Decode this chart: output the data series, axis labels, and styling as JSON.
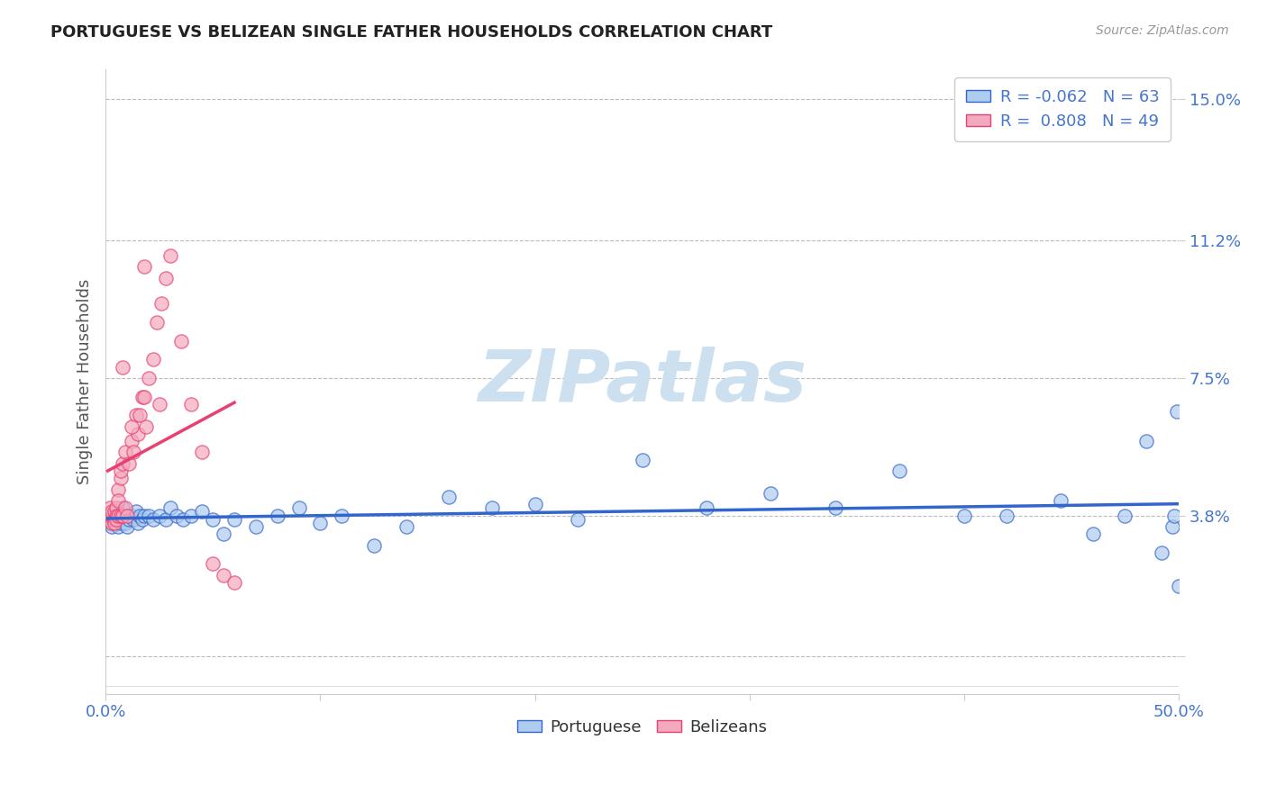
{
  "title": "PORTUGUESE VS BELIZEAN SINGLE FATHER HOUSEHOLDS CORRELATION CHART",
  "source_text": "Source: ZipAtlas.com",
  "ylabel": "Single Father Households",
  "xlim": [
    0.0,
    0.5
  ],
  "ylim": [
    -0.01,
    0.158
  ],
  "yticks": [
    0.0,
    0.038,
    0.075,
    0.112,
    0.15
  ],
  "ytick_labels": [
    "",
    "3.8%",
    "7.5%",
    "11.2%",
    "15.0%"
  ],
  "xtick_positions": [
    0.0,
    0.1,
    0.2,
    0.3,
    0.4,
    0.5
  ],
  "xtick_labels": [
    "0.0%",
    "",
    "",
    "",
    "",
    "50.0%"
  ],
  "portuguese_color": "#aeccee",
  "belizean_color": "#f4aabe",
  "portuguese_line_color": "#3366cc",
  "belizean_line_color": "#e84070",
  "legend_R1": "-0.062",
  "legend_N1": "63",
  "legend_R2": "0.808",
  "legend_N2": "49",
  "watermark": "ZIPatlas",
  "watermark_color": "#cce0f0",
  "background_color": "#ffffff",
  "grid_color": "#bbbbbb",
  "title_color": "#222222",
  "axis_label_color": "#555555",
  "tick_color": "#4477cc",
  "source_color": "#999999",
  "portuguese_x": [
    0.001,
    0.002,
    0.003,
    0.003,
    0.004,
    0.005,
    0.005,
    0.006,
    0.006,
    0.007,
    0.007,
    0.008,
    0.008,
    0.009,
    0.01,
    0.01,
    0.011,
    0.012,
    0.013,
    0.014,
    0.015,
    0.016,
    0.017,
    0.018,
    0.02,
    0.022,
    0.025,
    0.028,
    0.03,
    0.033,
    0.036,
    0.04,
    0.045,
    0.05,
    0.055,
    0.06,
    0.07,
    0.08,
    0.09,
    0.1,
    0.11,
    0.125,
    0.14,
    0.16,
    0.18,
    0.2,
    0.22,
    0.25,
    0.28,
    0.31,
    0.34,
    0.37,
    0.4,
    0.42,
    0.445,
    0.46,
    0.475,
    0.485,
    0.492,
    0.497,
    0.498,
    0.499,
    0.5
  ],
  "portuguese_y": [
    0.037,
    0.036,
    0.038,
    0.035,
    0.037,
    0.036,
    0.039,
    0.035,
    0.038,
    0.036,
    0.038,
    0.037,
    0.04,
    0.036,
    0.038,
    0.035,
    0.037,
    0.038,
    0.037,
    0.039,
    0.036,
    0.038,
    0.037,
    0.038,
    0.038,
    0.037,
    0.038,
    0.037,
    0.04,
    0.038,
    0.037,
    0.038,
    0.039,
    0.037,
    0.033,
    0.037,
    0.035,
    0.038,
    0.04,
    0.036,
    0.038,
    0.03,
    0.035,
    0.043,
    0.04,
    0.041,
    0.037,
    0.053,
    0.04,
    0.044,
    0.04,
    0.05,
    0.038,
    0.038,
    0.042,
    0.033,
    0.038,
    0.058,
    0.028,
    0.035,
    0.038,
    0.066,
    0.019
  ],
  "belizean_x": [
    0.001,
    0.001,
    0.002,
    0.002,
    0.003,
    0.003,
    0.003,
    0.004,
    0.004,
    0.004,
    0.005,
    0.005,
    0.005,
    0.006,
    0.006,
    0.006,
    0.007,
    0.007,
    0.007,
    0.008,
    0.008,
    0.009,
    0.009,
    0.01,
    0.011,
    0.012,
    0.013,
    0.014,
    0.015,
    0.016,
    0.017,
    0.018,
    0.019,
    0.02,
    0.022,
    0.024,
    0.026,
    0.028,
    0.03,
    0.035,
    0.04,
    0.045,
    0.05,
    0.055,
    0.06,
    0.018,
    0.025,
    0.008,
    0.012
  ],
  "belizean_y": [
    0.037,
    0.038,
    0.038,
    0.04,
    0.036,
    0.038,
    0.039,
    0.037,
    0.039,
    0.036,
    0.04,
    0.038,
    0.037,
    0.045,
    0.042,
    0.038,
    0.048,
    0.05,
    0.038,
    0.052,
    0.038,
    0.055,
    0.04,
    0.038,
    0.052,
    0.058,
    0.055,
    0.065,
    0.06,
    0.065,
    0.07,
    0.07,
    0.062,
    0.075,
    0.08,
    0.09,
    0.095,
    0.102,
    0.108,
    0.085,
    0.068,
    0.055,
    0.025,
    0.022,
    0.02,
    0.105,
    0.068,
    0.078,
    0.062
  ]
}
